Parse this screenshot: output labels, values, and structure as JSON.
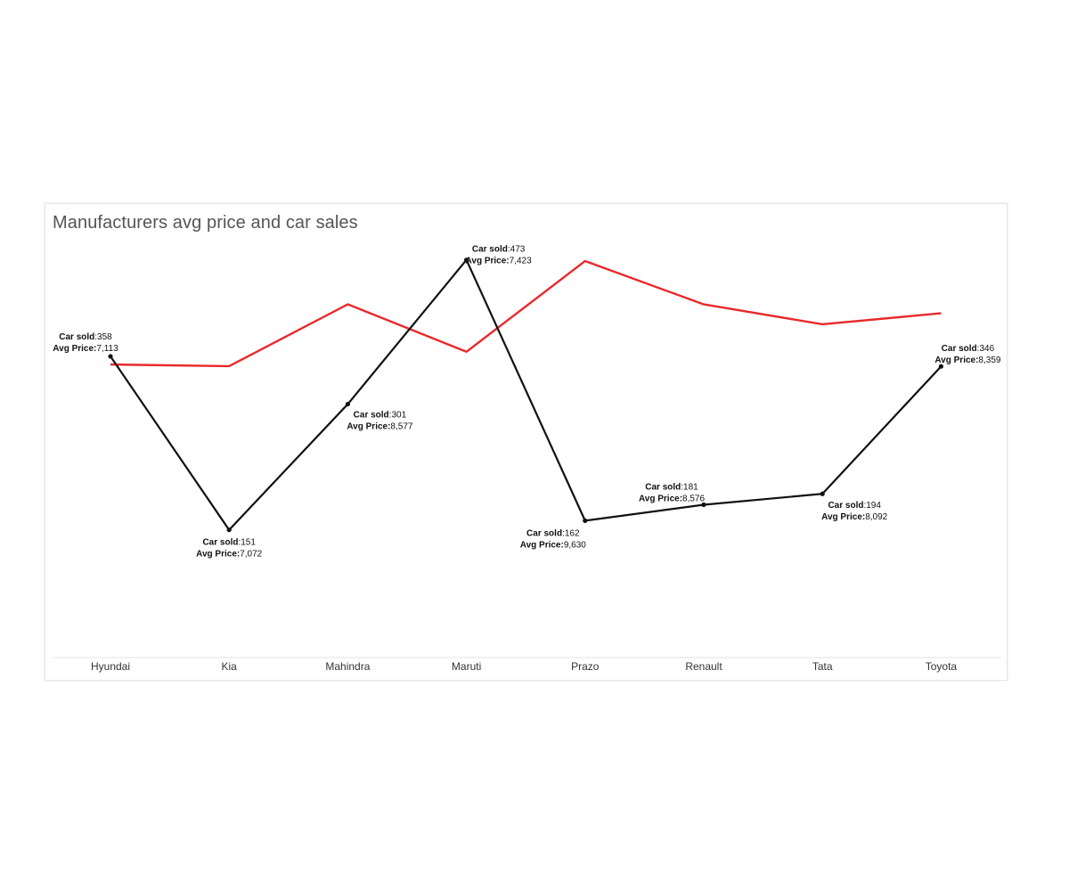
{
  "chart_data": {
    "type": "line",
    "title": "Manufacturers avg price and car sales",
    "categories": [
      "Hyundai",
      "Kia",
      "Mahindra",
      "Maruti",
      "Prazo",
      "Renault",
      "Tata",
      "Toyota"
    ],
    "series": [
      {
        "name": "Car sold",
        "color": "#111111",
        "values": [
          358,
          151,
          301,
          473,
          162,
          181,
          194,
          346
        ],
        "data_labels": [
          {
            "label1": "Car sold",
            "value1": ":358",
            "label2": "Avg Price:",
            "value2": "7,113"
          },
          {
            "label1": "Car sold",
            "value1": ":151",
            "label2": "Avg Price:",
            "value2": "7,072"
          },
          {
            "label1": "Car sold",
            "value1": ":301",
            "label2": "Avg Price:",
            "value2": "8,577"
          },
          {
            "label1": "Car sold",
            "value1": ":473",
            "label2": "Avg Price:",
            "value2": "7,423"
          },
          {
            "label1": "Car sold",
            "value1": ":162",
            "label2": "Avg Price:",
            "value2": "9,630"
          },
          {
            "label1": "Car sold",
            "value1": ":181",
            "label2": "Avg Price:",
            "value2": "8,576"
          },
          {
            "label1": "Car sold",
            "value1": ":194",
            "label2": "Avg Price:",
            "value2": "8,092"
          },
          {
            "label1": "Car sold",
            "value1": ":346",
            "label2": "Avg Price:",
            "value2": "8,359"
          }
        ]
      },
      {
        "name": "Avg Price",
        "color": "#e8292b",
        "values": [
          7113,
          7072,
          8577,
          7423,
          9630,
          8576,
          8092,
          8359
        ]
      }
    ],
    "axes": {
      "car_sold_range": [
        0,
        500
      ],
      "avg_price_range": [
        0,
        10500
      ]
    },
    "grid": false,
    "legend": "none"
  }
}
